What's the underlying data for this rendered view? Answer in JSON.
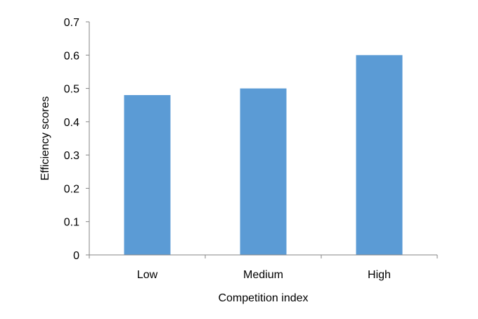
{
  "chart_data": {
    "type": "bar",
    "title": "",
    "xlabel": "Competition index",
    "ylabel": "Efficiency scores",
    "categories": [
      "Low",
      "Medium",
      "High"
    ],
    "values": [
      0.48,
      0.5,
      0.6
    ],
    "ylim": [
      0,
      0.7
    ],
    "yticks": [
      "0",
      "0.1",
      "0.2",
      "0.3",
      "0.4",
      "0.5",
      "0.6",
      "0.7"
    ],
    "grid": false,
    "legend": "none",
    "bar_color": "#5b9bd5"
  }
}
